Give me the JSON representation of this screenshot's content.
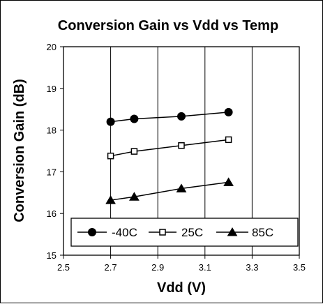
{
  "chart_data": {
    "type": "line",
    "title": "Conversion Gain vs Vdd vs Temp",
    "xlabel": "Vdd (V)",
    "ylabel": "Conversion Gain (dB)",
    "xlim": [
      2.5,
      3.5
    ],
    "ylim": [
      15,
      20
    ],
    "xticks": [
      "2.5",
      "2.7",
      "2.9",
      "3.1",
      "3.3",
      "3.5"
    ],
    "yticks": [
      "15",
      "16",
      "17",
      "18",
      "19",
      "20"
    ],
    "grid": "vertical",
    "legend": "bottom, inside plot",
    "series": [
      {
        "name": "-40C",
        "marker": "circle",
        "color": "#000000",
        "x": [
          2.7,
          2.8,
          3.0,
          3.2
        ],
        "y": [
          18.2,
          18.27,
          18.33,
          18.43
        ]
      },
      {
        "name": "25C",
        "marker": "square",
        "color": "#000000",
        "x": [
          2.7,
          2.8,
          3.0,
          3.2
        ],
        "y": [
          17.38,
          17.49,
          17.63,
          17.77
        ]
      },
      {
        "name": "85C",
        "marker": "triangle",
        "color": "#000000",
        "x": [
          2.7,
          2.8,
          3.0,
          3.2
        ],
        "y": [
          16.32,
          16.4,
          16.6,
          16.75
        ]
      }
    ]
  }
}
